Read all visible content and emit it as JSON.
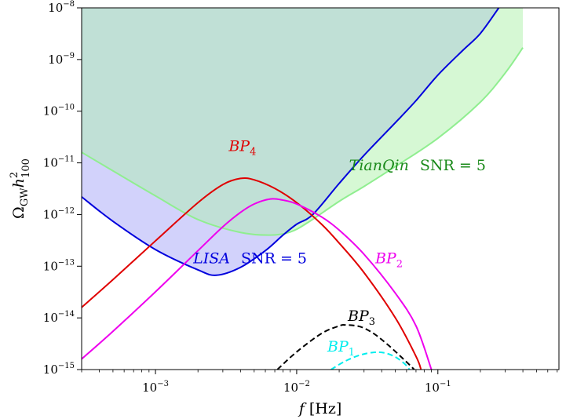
{
  "chart_data": {
    "type": "line",
    "xlabel": "f [Hz]",
    "ylabel": "Ω_GW h²_100",
    "xscale": "log",
    "yscale": "log",
    "xlim": [
      0.0003,
      0.72
    ],
    "ylim": [
      1e-15,
      1e-08
    ],
    "grid": false,
    "legend": "none",
    "x_ticks": [
      {
        "base": "10",
        "exp": "−3",
        "value": 0.001
      },
      {
        "base": "10",
        "exp": "−2",
        "value": 0.01
      },
      {
        "base": "10",
        "exp": "−1",
        "value": 0.1
      }
    ],
    "y_ticks": [
      {
        "base": "10",
        "exp": "−8",
        "value": 1e-08
      },
      {
        "base": "10",
        "exp": "−9",
        "value": 1e-09
      },
      {
        "base": "10",
        "exp": "−10",
        "value": 1e-10
      },
      {
        "base": "10",
        "exp": "−11",
        "value": 1e-11
      },
      {
        "base": "10",
        "exp": "−12",
        "value": 1e-12
      },
      {
        "base": "10",
        "exp": "−13",
        "value": 1e-13
      },
      {
        "base": "10",
        "exp": "−14",
        "value": 1e-14
      },
      {
        "base": "10",
        "exp": "−15",
        "value": 1e-15
      }
    ],
    "sensitivity_curves": [
      {
        "name": "LISA",
        "label_italic": "LISA",
        "label_snr": "SNR = 5",
        "color": "#0000dd",
        "fill": "#d2d2fb",
        "points": [
          [
            0.0003,
            2.2e-12
          ],
          [
            0.0005,
            7.4e-13
          ],
          [
            0.001,
            2.1e-13
          ],
          [
            0.002,
            8.5e-14
          ],
          [
            0.0027,
            6.7e-14
          ],
          [
            0.004,
            9.5e-14
          ],
          [
            0.006,
            2e-13
          ],
          [
            0.008,
            4e-13
          ],
          [
            0.01,
            6.5e-13
          ],
          [
            0.013,
            1e-12
          ],
          [
            0.02,
            4e-12
          ],
          [
            0.03,
            1.4e-11
          ],
          [
            0.05,
            6e-11
          ],
          [
            0.07,
            1.6e-10
          ],
          [
            0.1,
            5e-10
          ],
          [
            0.15,
            1.5e-09
          ],
          [
            0.2,
            3.2e-09
          ],
          [
            0.27,
            1e-08
          ]
        ]
      },
      {
        "name": "TianQin",
        "label_italic": "TianQin",
        "label_snr": "SNR = 5",
        "color": "#90ee90",
        "fill": "#d6f8d4",
        "points": [
          [
            0.0003,
            1.6e-11
          ],
          [
            0.0005,
            7e-12
          ],
          [
            0.001,
            2.3e-12
          ],
          [
            0.002,
            8e-13
          ],
          [
            0.004,
            4.5e-13
          ],
          [
            0.0065,
            4e-13
          ],
          [
            0.009,
            4.6e-13
          ],
          [
            0.012,
            7e-13
          ],
          [
            0.02,
            1.8e-12
          ],
          [
            0.03,
            3.5e-12
          ],
          [
            0.05,
            8.5e-12
          ],
          [
            0.1,
            3e-11
          ],
          [
            0.2,
            1.5e-10
          ],
          [
            0.3,
            5.5e-10
          ],
          [
            0.4,
            1.7e-09
          ]
        ]
      }
    ],
    "overlap_fill": "#c0e0d6",
    "series": [
      {
        "name": "BP_4",
        "label": "BP",
        "sub": "4",
        "color": "#e00000",
        "style": "solid",
        "points": [
          [
            0.0003,
            1.6e-14
          ],
          [
            0.0005,
            5.5e-14
          ],
          [
            0.001,
            3.1e-13
          ],
          [
            0.002,
            1.7e-12
          ],
          [
            0.003,
            3.8e-12
          ],
          [
            0.004,
            5e-12
          ],
          [
            0.005,
            4.7e-12
          ],
          [
            0.007,
            3.2e-12
          ],
          [
            0.01,
            1.7e-12
          ],
          [
            0.015,
            6.5e-13
          ],
          [
            0.02,
            2.8e-13
          ],
          [
            0.03,
            7.5e-14
          ],
          [
            0.05,
            1e-14
          ],
          [
            0.07,
            1.8e-15
          ],
          [
            0.076,
            1e-15
          ]
        ]
      },
      {
        "name": "BP_2",
        "label": "BP",
        "sub": "2",
        "color": "#ee00ee",
        "style": "solid",
        "points": [
          [
            0.0003,
            1.6e-15
          ],
          [
            0.0005,
            5.5e-15
          ],
          [
            0.001,
            3.2e-14
          ],
          [
            0.002,
            2e-13
          ],
          [
            0.003,
            5.8e-13
          ],
          [
            0.004,
            1.1e-12
          ],
          [
            0.005,
            1.6e-12
          ],
          [
            0.0065,
            2e-12
          ],
          [
            0.008,
            1.9e-12
          ],
          [
            0.01,
            1.6e-12
          ],
          [
            0.015,
            9e-13
          ],
          [
            0.02,
            5e-13
          ],
          [
            0.03,
            1.7e-13
          ],
          [
            0.05,
            3e-14
          ],
          [
            0.07,
            7e-15
          ],
          [
            0.09,
            1e-15
          ]
        ]
      },
      {
        "name": "BP_3",
        "label": "BP",
        "sub": "3",
        "color": "#000000",
        "style": "dashed",
        "points": [
          [
            0.0073,
            1e-15
          ],
          [
            0.01,
            2.2e-15
          ],
          [
            0.015,
            5e-15
          ],
          [
            0.02,
            7e-15
          ],
          [
            0.022,
            7.3e-15
          ],
          [
            0.028,
            6.8e-15
          ],
          [
            0.035,
            5e-15
          ],
          [
            0.045,
            2.9e-15
          ],
          [
            0.06,
            1.4e-15
          ],
          [
            0.068,
            1e-15
          ]
        ]
      },
      {
        "name": "BP_1",
        "label": "BP",
        "sub": "1",
        "color": "#00eeee",
        "style": "dashed",
        "points": [
          [
            0.0175,
            1e-15
          ],
          [
            0.022,
            1.45e-15
          ],
          [
            0.028,
            1.9e-15
          ],
          [
            0.035,
            2.15e-15
          ],
          [
            0.042,
            2.1e-15
          ],
          [
            0.05,
            1.75e-15
          ],
          [
            0.058,
            1.3e-15
          ],
          [
            0.063,
            1e-15
          ]
        ]
      }
    ]
  }
}
